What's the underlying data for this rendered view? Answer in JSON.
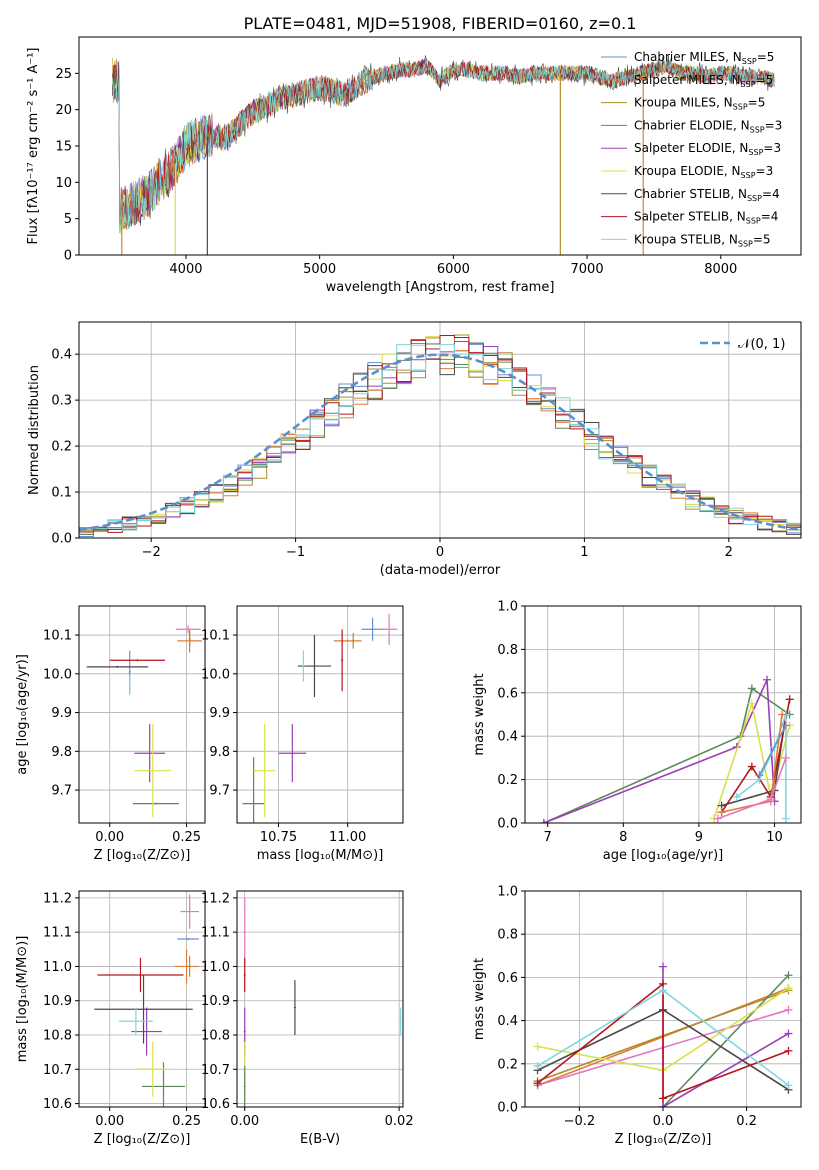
{
  "figure_title": "PLATE=0481, MJD=51908, FIBERID=0160, z=0.1",
  "colors": {
    "Chabrier MILES": "#6a8fd3",
    "Salpeter MILES": "#e07b39",
    "Kroupa MILES": "#b08a2e",
    "Chabrier ELODIE": "#5a8a5a",
    "Salpeter ELODIE": "#9b3fb6",
    "Kroupa ELODIE": "#d9e04a",
    "Chabrier STELIB": "#4a4a4a",
    "Salpeter STELIB": "#b5161b",
    "Kroupa STELIB": "#7fd8dc",
    "pink": "#e377c2",
    "normal": "#5b8fd0"
  },
  "chart_data": [
    {
      "type": "line",
      "title": "PLATE=0481, MJD=51908, FIBERID=0160, z=0.1",
      "xlabel": "wavelength [Angstrom, rest frame]",
      "ylabel": "Flux [fλ10⁻¹⁷ erg cm⁻² s⁻¹ A⁻¹]",
      "xlim": [
        3200,
        8600
      ],
      "ylim": [
        0,
        30
      ],
      "xticks": [
        "4000",
        "5000",
        "6000",
        "7000",
        "8000"
      ],
      "yticks": [
        "0",
        "5",
        "10",
        "15",
        "20",
        "25"
      ],
      "legend_location": "right",
      "legend": [
        {
          "label": "Chabrier MILES, N",
          "sub": "SSP",
          "suffix": "=5",
          "color_key": "Chabrier MILES"
        },
        {
          "label": "Salpeter MILES, N",
          "sub": "SSP",
          "suffix": "=5",
          "color_key": "Salpeter MILES"
        },
        {
          "label": "Kroupa MILES, N",
          "sub": "SSP",
          "suffix": "=5",
          "color_key": "Kroupa MILES"
        },
        {
          "label": "Chabrier ELODIE, N",
          "sub": "SSP",
          "suffix": "=3",
          "color_key": "Chabrier ELODIE"
        },
        {
          "label": "Salpeter ELODIE, N",
          "sub": "SSP",
          "suffix": "=3",
          "color_key": "Salpeter ELODIE"
        },
        {
          "label": "Kroupa ELODIE, N",
          "sub": "SSP",
          "suffix": "=3",
          "color_key": "Kroupa ELODIE"
        },
        {
          "label": "Chabrier STELIB, N",
          "sub": "SSP",
          "suffix": "=4",
          "color_key": "Chabrier STELIB"
        },
        {
          "label": "Salpeter STELIB, N",
          "sub": "SSP",
          "suffix": "=4",
          "color_key": "Salpeter STELIB"
        },
        {
          "label": "Kroupa STELIB, N",
          "sub": "SSP",
          "suffix": "=5",
          "color_key": "Kroupa STELIB"
        }
      ],
      "spectrum_anchors": [
        [
          3500,
          6
        ],
        [
          3600,
          7
        ],
        [
          3700,
          8
        ],
        [
          3800,
          10
        ],
        [
          3900,
          12
        ],
        [
          4000,
          15
        ],
        [
          4100,
          16
        ],
        [
          4200,
          16.5
        ],
        [
          4300,
          16
        ],
        [
          4400,
          18
        ],
        [
          4500,
          19.5
        ],
        [
          4600,
          20.5
        ],
        [
          4700,
          21.5
        ],
        [
          4800,
          22
        ],
        [
          4900,
          22.5
        ],
        [
          5000,
          23
        ],
        [
          5100,
          22.5
        ],
        [
          5200,
          22
        ],
        [
          5300,
          23.5
        ],
        [
          5400,
          24.5
        ],
        [
          5500,
          25
        ],
        [
          5600,
          25.5
        ],
        [
          5700,
          25.5
        ],
        [
          5800,
          26
        ],
        [
          5900,
          24
        ],
        [
          6000,
          25.5
        ],
        [
          6100,
          25.5
        ],
        [
          6200,
          25
        ],
        [
          6300,
          25
        ],
        [
          6400,
          25
        ],
        [
          6500,
          24.5
        ],
        [
          6600,
          25
        ],
        [
          6700,
          25
        ],
        [
          6800,
          25
        ],
        [
          6900,
          25
        ],
        [
          7000,
          25
        ],
        [
          7100,
          24.5
        ],
        [
          7200,
          24
        ],
        [
          7300,
          24.5
        ],
        [
          7400,
          25
        ],
        [
          7500,
          25.5
        ],
        [
          7600,
          26
        ],
        [
          7700,
          25
        ],
        [
          7800,
          25
        ],
        [
          7900,
          24.5
        ],
        [
          8000,
          25
        ],
        [
          8100,
          25
        ],
        [
          8200,
          24.5
        ],
        [
          8300,
          24.5
        ],
        [
          8400,
          24
        ]
      ],
      "spectrum_end": 8400,
      "drop_lines": [
        [
          3520,
          "Salpeter MILES"
        ],
        [
          3920,
          "Kroupa ELODIE"
        ],
        [
          4160,
          "Chabrier STELIB"
        ],
        [
          6800,
          "Kroupa MILES"
        ],
        [
          7420,
          "Salpeter MILES"
        ]
      ]
    },
    {
      "type": "bar",
      "xlabel": "(data-model)/error",
      "ylabel": "Normed distribution",
      "xlim": [
        -2.5,
        2.5
      ],
      "ylim": [
        0,
        0.47
      ],
      "xticks": [
        "−2",
        "−1",
        "0",
        "1",
        "2"
      ],
      "yticks": [
        "0.0",
        "0.1",
        "0.2",
        "0.3",
        "0.4"
      ],
      "legend": "𝒩(0, 1)",
      "legend_location": "upper right",
      "bin_edges_start": -2.5,
      "bin_width": 0.1,
      "base": [
        0.017,
        0.022,
        0.027,
        0.032,
        0.04,
        0.048,
        0.058,
        0.07,
        0.083,
        0.098,
        0.115,
        0.134,
        0.155,
        0.177,
        0.2,
        0.224,
        0.248,
        0.273,
        0.297,
        0.32,
        0.342,
        0.362,
        0.379,
        0.392,
        0.4,
        0.4,
        0.4,
        0.392,
        0.379,
        0.362,
        0.342,
        0.32,
        0.297,
        0.273,
        0.248,
        0.224,
        0.2,
        0.177,
        0.155,
        0.134,
        0.115,
        0.098,
        0.083,
        0.07,
        0.058,
        0.048,
        0.04,
        0.032,
        0.027,
        0.022
      ]
    },
    {
      "type": "scatter",
      "xlabel": "Z [log₁₀(Z/Z⊙)]",
      "ylabel": "age  [log₁₀(age/yr)]",
      "xlim": [
        -0.1,
        0.31
      ],
      "ylim": [
        9.615,
        10.175
      ],
      "xticks": [
        "0.00",
        "0.25"
      ],
      "yticks": [
        "9.7",
        "9.8",
        "9.9",
        "10.0",
        "10.1"
      ],
      "points": [
        {
          "series": "Chabrier MILES",
          "x": 0.065,
          "y": 10.005,
          "ex": 0.0,
          "ey": 0.055
        },
        {
          "series": "Salpeter MILES",
          "x": 0.26,
          "y": 10.085,
          "ex": 0.04,
          "ey": 0.03
        },
        {
          "series": "Kroupa MILES",
          "x": 0.26,
          "y": 10.09,
          "ex": 0.0,
          "ey": 0.02
        },
        {
          "series": "Chabrier ELODIE",
          "x": 0.15,
          "y": 9.665,
          "ex": 0.075,
          "ey": 0.0
        },
        {
          "series": "Salpeter ELODIE",
          "x": 0.13,
          "y": 9.795,
          "ex": 0.05,
          "ey": 0.075
        },
        {
          "series": "Kroupa ELODIE",
          "x": 0.14,
          "y": 9.75,
          "ex": 0.06,
          "ey": 0.12
        },
        {
          "series": "Chabrier STELIB",
          "x": 0.025,
          "y": 10.018,
          "ex": 0.1,
          "ey": 0.0
        },
        {
          "series": "Salpeter STELIB",
          "x": 0.09,
          "y": 10.035,
          "ex": 0.09,
          "ey": 0.0
        },
        {
          "series": "Kroupa STELIB",
          "x": 0.065,
          "y": 9.97,
          "ex": 0.0,
          "ey": 0.025
        },
        {
          "series": "pink",
          "x": 0.255,
          "y": 10.115,
          "ex": 0.04,
          "ey": 0.01
        }
      ]
    },
    {
      "type": "scatter",
      "xlabel": "mass [log₁₀(M/M⊙)]",
      "xlim": [
        10.6,
        11.2
      ],
      "ylim": [
        9.615,
        10.175
      ],
      "xticks": [
        "10.75",
        "11.00"
      ],
      "yticks": [
        "9.7",
        "9.8",
        "9.9",
        "10.0",
        "10.1"
      ],
      "points": [
        {
          "series": "Chabrier MILES",
          "x": 11.09,
          "y": 10.115,
          "ex": 0.04,
          "ey": 0.03
        },
        {
          "series": "Salpeter MILES",
          "x": 11.0,
          "y": 10.085,
          "ex": 0.05,
          "ey": 0.0
        },
        {
          "series": "Kroupa MILES",
          "x": 11.02,
          "y": 10.085,
          "ex": 0.0,
          "ey": 0.02
        },
        {
          "series": "Chabrier ELODIE",
          "x": 10.66,
          "y": 9.665,
          "ex": 0.04,
          "ey": 0.12
        },
        {
          "series": "Salpeter ELODIE",
          "x": 10.8,
          "y": 9.795,
          "ex": 0.05,
          "ey": 0.075
        },
        {
          "series": "Kroupa ELODIE",
          "x": 10.7,
          "y": 9.75,
          "ex": 0.04,
          "ey": 0.12
        },
        {
          "series": "Chabrier STELIB",
          "x": 10.88,
          "y": 10.02,
          "ex": 0.06,
          "ey": 0.08
        },
        {
          "series": "Salpeter STELIB",
          "x": 10.98,
          "y": 10.035,
          "ex": 0.0,
          "ey": 0.08
        },
        {
          "series": "Kroupa STELIB",
          "x": 10.84,
          "y": 10.02,
          "ex": 0.0,
          "ey": 0.04
        },
        {
          "series": "pink",
          "x": 11.15,
          "y": 10.115,
          "ex": 0.03,
          "ey": 0.04
        }
      ]
    },
    {
      "type": "line",
      "xlabel": "age  [log₁₀(age/yr)]",
      "ylabel": "mass weight",
      "xlim": [
        6.7,
        10.35
      ],
      "ylim": [
        0,
        1.0
      ],
      "xticks": [
        "7",
        "8",
        "9",
        "10"
      ],
      "yticks": [
        "0.0",
        "0.2",
        "0.4",
        "0.6",
        "0.8",
        "1.0"
      ],
      "series": [
        {
          "name": "Chabrier ELODIE",
          "points": [
            [
              6.95,
              0.0
            ],
            [
              9.55,
              0.4
            ],
            [
              9.7,
              0.62
            ],
            [
              10.2,
              0.5
            ]
          ]
        },
        {
          "name": "Salpeter ELODIE",
          "points": [
            [
              6.95,
              0.0
            ],
            [
              9.5,
              0.35
            ],
            [
              9.9,
              0.66
            ],
            [
              10.0,
              0.1
            ]
          ]
        },
        {
          "name": "Kroupa ELODIE",
          "points": [
            [
              9.2,
              0.02
            ],
            [
              9.7,
              0.55
            ],
            [
              9.95,
              0.12
            ],
            [
              10.2,
              0.45
            ]
          ]
        },
        {
          "name": "Chabrier STELIB",
          "points": [
            [
              9.3,
              0.08
            ],
            [
              10.0,
              0.15
            ],
            [
              10.15,
              0.5
            ]
          ]
        },
        {
          "name": "Salpeter STELIB",
          "points": [
            [
              9.3,
              0.05
            ],
            [
              9.7,
              0.26
            ],
            [
              9.95,
              0.12
            ],
            [
              10.2,
              0.57
            ]
          ]
        },
        {
          "name": "Kroupa STELIB",
          "points": [
            [
              9.5,
              0.12
            ],
            [
              9.8,
              0.2
            ],
            [
              10.0,
              0.35
            ],
            [
              10.15,
              0.5
            ],
            [
              10.15,
              0.02
            ]
          ]
        },
        {
          "name": "Salpeter MILES",
          "points": [
            [
              9.3,
              0.05
            ],
            [
              9.95,
              0.1
            ],
            [
              10.1,
              0.5
            ]
          ]
        },
        {
          "name": "Chabrier MILES",
          "points": [
            [
              9.8,
              0.22
            ],
            [
              10.15,
              0.45
            ]
          ]
        },
        {
          "name": "pink",
          "points": [
            [
              9.25,
              0.02
            ],
            [
              9.95,
              0.11
            ],
            [
              10.15,
              0.3
            ]
          ]
        }
      ]
    },
    {
      "type": "scatter",
      "xlabel": "Z [log₁₀(Z/Z⊙)]",
      "ylabel": "mass [log₁₀(M/M⊙)]",
      "xlim": [
        -0.1,
        0.31
      ],
      "ylim": [
        10.59,
        11.22
      ],
      "xticks": [
        "0.00",
        "0.25"
      ],
      "yticks": [
        "10.6",
        "10.7",
        "10.8",
        "10.9",
        "11.0",
        "11.1",
        "11.2"
      ],
      "points": [
        {
          "series": "Chabrier MILES",
          "x": 0.255,
          "y": 11.08,
          "ex": 0.035,
          "ey": 0.0
        },
        {
          "series": "Salpeter MILES",
          "x": 0.25,
          "y": 11.0,
          "ex": 0.04,
          "ey": 0.05
        },
        {
          "series": "Kroupa MILES",
          "x": 0.26,
          "y": 11.0,
          "ex": 0.0,
          "ey": 0.03
        },
        {
          "series": "Chabrier ELODIE",
          "x": 0.175,
          "y": 10.65,
          "ex": 0.07,
          "ey": 0.07
        },
        {
          "series": "Salpeter ELODIE",
          "x": 0.12,
          "y": 10.81,
          "ex": 0.05,
          "ey": 0.07
        },
        {
          "series": "Kroupa ELODIE",
          "x": 0.14,
          "y": 10.7,
          "ex": 0.06,
          "ey": 0.08
        },
        {
          "series": "Chabrier STELIB",
          "x": 0.11,
          "y": 10.875,
          "ex": 0.16,
          "ey": 0.1
        },
        {
          "series": "Salpeter STELIB",
          "x": 0.1,
          "y": 10.975,
          "ex": 0.14,
          "ey": 0.05
        },
        {
          "series": "Kroupa STELIB",
          "x": 0.085,
          "y": 10.84,
          "ex": 0.055,
          "ey": 0.04
        },
        {
          "series": "pink",
          "x": 0.26,
          "y": 11.16,
          "ex": 0.03,
          "ey": 0.05
        }
      ]
    },
    {
      "type": "scatter",
      "xlabel": "E(B-V)",
      "xlim": [
        -0.001,
        0.0205
      ],
      "ylim": [
        10.59,
        11.22
      ],
      "xticks": [
        "0.00",
        "0.02"
      ],
      "yticks": [
        "10.6",
        "10.7",
        "10.8",
        "10.9",
        "11.0",
        "11.1",
        "11.2"
      ],
      "points": [
        {
          "series": "pink",
          "x": 0.0,
          "y": 11.1,
          "ex": 0.0,
          "ey": 0.1
        },
        {
          "series": "Salpeter STELIB",
          "x": 0.0,
          "y": 10.975,
          "ex": 0.0,
          "ey": 0.05
        },
        {
          "series": "Salpeter ELODIE",
          "x": 0.0,
          "y": 10.81,
          "ex": 0.0,
          "ey": 0.07
        },
        {
          "series": "Kroupa ELODIE",
          "x": 0.0,
          "y": 10.7,
          "ex": 0.0,
          "ey": 0.08
        },
        {
          "series": "Chabrier ELODIE",
          "x": 0.0,
          "y": 10.65,
          "ex": 0.0,
          "ey": 0.06
        },
        {
          "series": "Chabrier STELIB",
          "x": 0.0065,
          "y": 10.88,
          "ex": 0.0,
          "ey": 0.08
        },
        {
          "series": "Kroupa STELIB",
          "x": 0.0202,
          "y": 10.84,
          "ex": 0.0,
          "ey": 0.04
        }
      ]
    },
    {
      "type": "line",
      "xlabel": "Z [log₁₀(Z/Z⊙)]",
      "ylabel": "mass weight",
      "xlim": [
        -0.33,
        0.33
      ],
      "ylim": [
        0,
        1.0
      ],
      "xticks": [
        "−0.2",
        "0.0",
        "0.2"
      ],
      "yticks": [
        "0.0",
        "0.2",
        "0.4",
        "0.6",
        "0.8",
        "1.0"
      ],
      "series": [
        {
          "name": "Salpeter MILES",
          "points": [
            [
              -0.3,
              0.1
            ],
            [
              0.3,
              0.55
            ]
          ]
        },
        {
          "name": "Kroupa MILES",
          "points": [
            [
              -0.3,
              0.12
            ],
            [
              0.3,
              0.54
            ]
          ]
        },
        {
          "name": "pink",
          "points": [
            [
              -0.3,
              0.1
            ],
            [
              0.3,
              0.45
            ]
          ]
        },
        {
          "name": "Chabrier ELODIE",
          "points": [
            [
              0.0,
              0.0
            ],
            [
              0.3,
              0.61
            ]
          ]
        },
        {
          "name": "Salpeter ELODIE",
          "points": [
            [
              0.0,
              0.65
            ],
            [
              0.0,
              0.0
            ],
            [
              0.3,
              0.34
            ]
          ]
        },
        {
          "name": "Kroupa ELODIE",
          "points": [
            [
              -0.3,
              0.28
            ],
            [
              0.0,
              0.17
            ],
            [
              0.3,
              0.55
            ]
          ]
        },
        {
          "name": "Chabrier STELIB",
          "points": [
            [
              -0.3,
              0.17
            ],
            [
              0.0,
              0.45
            ],
            [
              0.3,
              0.08
            ]
          ]
        },
        {
          "name": "Salpeter STELIB",
          "points": [
            [
              -0.3,
              0.11
            ],
            [
              0.0,
              0.57
            ],
            [
              0.0,
              0.04
            ],
            [
              0.3,
              0.26
            ]
          ]
        },
        {
          "name": "Kroupa STELIB",
          "points": [
            [
              -0.3,
              0.19
            ],
            [
              0.0,
              0.54
            ],
            [
              0.3,
              0.1
            ]
          ]
        }
      ]
    }
  ]
}
